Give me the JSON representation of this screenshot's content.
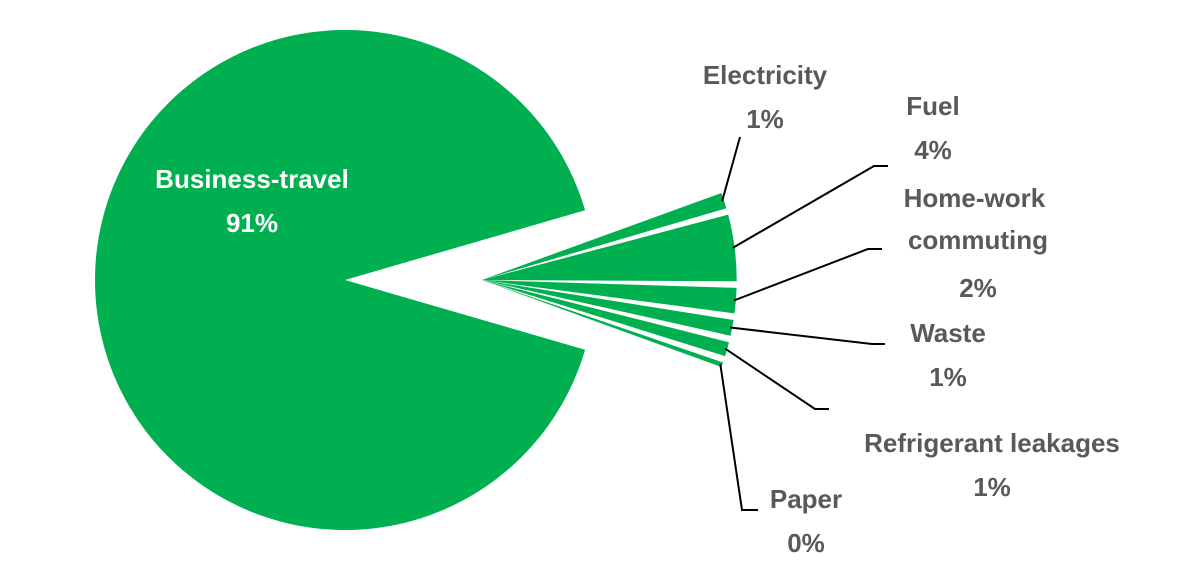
{
  "chart_data": {
    "type": "pie",
    "title": "",
    "slice_color": "#00b050",
    "label_color": "#595959",
    "leader_color": "#000000",
    "slices": [
      {
        "name": "Business-travel",
        "percent_label": "91%",
        "value": 91.0
      },
      {
        "name": "Electricity",
        "percent_label": "1%",
        "value": 1.0
      },
      {
        "name": "Fuel",
        "percent_label": "4%",
        "value": 4.2
      },
      {
        "name": "Home-work commuting",
        "percent_label": "2%",
        "value": 1.6
      },
      {
        "name": "Waste",
        "percent_label": "1%",
        "value": 1.0
      },
      {
        "name": "Refrigerant leakages",
        "percent_label": "1%",
        "value": 0.9
      },
      {
        "name": "Paper",
        "percent_label": "0%",
        "value": 0.3
      }
    ]
  }
}
